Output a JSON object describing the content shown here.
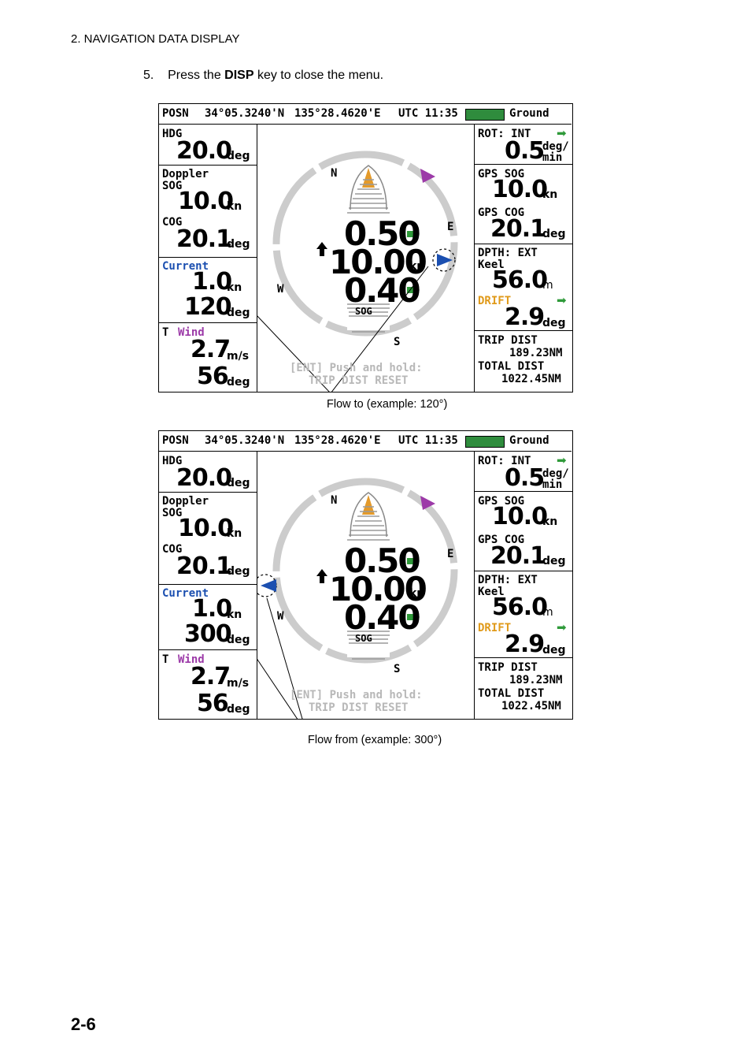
{
  "header": "2.  NAVIGATION DATA DISPLAY",
  "step": {
    "num": "5.",
    "pre": "Press the ",
    "key": "DISP",
    "post": " key to close the menu."
  },
  "page_number": "2-6",
  "captions": {
    "flow_to": "Flow to (example: 120°)",
    "flow_from": "Flow from (example: 300°)"
  },
  "display": {
    "posn": "POSN",
    "lat": "34°05.3240'N",
    "lon": "135°28.4620'E",
    "utc": "UTC 11:35",
    "status": "Ground",
    "hdg_label": "HDG",
    "hdg": "20.0",
    "deg": "deg",
    "doppler_label": "Doppler",
    "sog_label": "SOG",
    "sog": "10.0",
    "kn": "kn",
    "cog_label": "COG",
    "cog": "20.1",
    "current_label": "Current",
    "current_speed": "1.0",
    "wind_t": "T",
    "wind_label": "Wind",
    "wind_speed": "2.7",
    "ms": "m/s",
    "wind_dir": "56",
    "rot_label": "ROT: INT",
    "rot": "0.5",
    "rot_unit1": "deg/",
    "rot_unit2": "min",
    "gps_sog_label": "GPS SOG",
    "gps_sog": "10.0",
    "gps_cog_label": "GPS COG",
    "gps_cog": "20.1",
    "depth_label": "DPTH: EXT",
    "keel_label": "Keel",
    "depth": "56.0",
    "m": "m",
    "drift_label": "DRIFT",
    "drift": "2.9",
    "trip_label": "TRIP DIST",
    "trip": "189.23NM",
    "total_label": "TOTAL DIST",
    "total": "1022.45NM",
    "fore_speed": "0.50",
    "main_speed": "10.00",
    "aft_speed": "0.40",
    "sog_center": "SOG",
    "compass_n": "N",
    "compass_e": "E",
    "compass_s": "S",
    "compass_w": "W",
    "ent_line1": "[ENT] Push and hold:",
    "ent_line2": "TRIP DIST RESET"
  },
  "screens": [
    {
      "current_dir": "120"
    },
    {
      "current_dir": "300"
    }
  ],
  "colors": {
    "green": "#2f8c3d",
    "blue": "#1b4fb0",
    "purple": "#9c3aa8",
    "orange": "#e09a1a"
  }
}
